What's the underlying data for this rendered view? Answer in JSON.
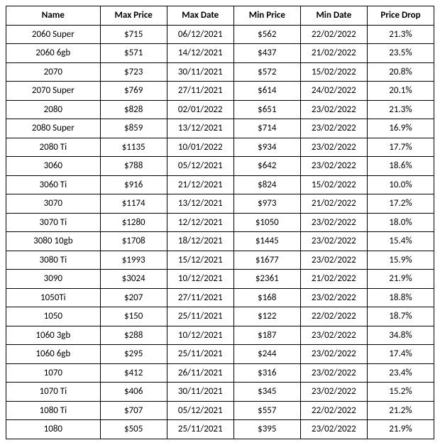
{
  "table": {
    "columns": [
      "Name",
      "Max Price",
      "Max Date",
      "Min Price",
      "Min Date",
      "Price Drop"
    ],
    "rows": [
      [
        "2060 Super",
        "$715",
        "06/12/2021",
        "$562",
        "22/02/2022",
        "21.3%"
      ],
      [
        "2060 6gb",
        "$571",
        "14/12/2021",
        "$437",
        "21/02/2022",
        "23.5%"
      ],
      [
        "2070",
        "$723",
        "30/11/2021",
        "$572",
        "15/02/2022",
        "20.8%"
      ],
      [
        "2070 Super",
        "$769",
        "27/11/2021",
        "$614",
        "24/02/2022",
        "20.1%"
      ],
      [
        "2080",
        "$828",
        "02/01/2022",
        "$651",
        "23/02/2022",
        "21.3%"
      ],
      [
        "2080 Super",
        "$859",
        "13/12/2021",
        "$714",
        "23/02/2022",
        "16.9%"
      ],
      [
        "2080 Ti",
        "$1135",
        "10/01/2022",
        "$934",
        "23/02/2022",
        "17.7%"
      ],
      [
        "3060",
        "$788",
        "05/12/2021",
        "$642",
        "23/02/2022",
        "18.6%"
      ],
      [
        "3060 Ti",
        "$916",
        "21/12/2021",
        "$824",
        "15/02/2022",
        "10.0%"
      ],
      [
        "3070",
        "$1174",
        "13/12/2021",
        "$973",
        "21/02/2022",
        "17.2%"
      ],
      [
        "3070 Ti",
        "$1280",
        "12/12/2021",
        "$1050",
        "23/02/2022",
        "18.0%"
      ],
      [
        "3080 10gb",
        "$1708",
        "18/12/2021",
        "$1445",
        "23/02/2022",
        "15.4%"
      ],
      [
        "3080 Ti",
        "$1993",
        "15/12/2021",
        "$1677",
        "23/02/2022",
        "15.9%"
      ],
      [
        "3090",
        "$3024",
        "10/12/2021",
        "$2361",
        "21/02/2022",
        "21.9%"
      ],
      [
        "1050Ti",
        "$207",
        "27/11/2021",
        "$168",
        "23/02/2022",
        "18.8%"
      ],
      [
        "1050",
        "$150",
        "25/11/2021",
        "$122",
        "22/02/2022",
        "18.7%"
      ],
      [
        "1060 3gb",
        "$288",
        "10/12/2021",
        "$187",
        "23/02/2022",
        "34.8%"
      ],
      [
        "1060 6gb",
        "$295",
        "25/11/2021",
        "$244",
        "23/02/2022",
        "17.4%"
      ],
      [
        "1070",
        "$412",
        "26/11/2021",
        "$316",
        "23/02/2022",
        "23.4%"
      ],
      [
        "1070 Ti",
        "$406",
        "30/11/2021",
        "$345",
        "23/02/2022",
        "15.2%"
      ],
      [
        "1080 Ti",
        "$707",
        "05/12/2021",
        "$557",
        "22/02/2022",
        "21.2%"
      ],
      [
        "1080",
        "$505",
        "25/11/2021",
        "$395",
        "23/02/2022",
        "21.9%"
      ]
    ]
  }
}
